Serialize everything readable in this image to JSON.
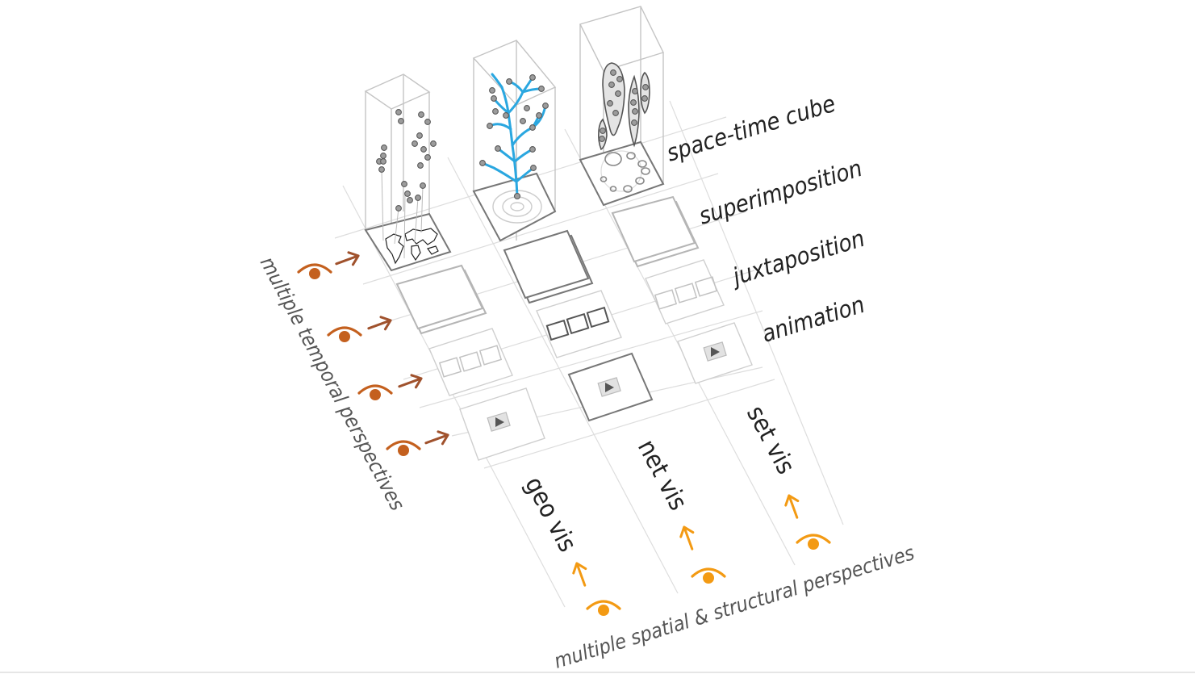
{
  "rows": {
    "space_time_cube": "space-time cube",
    "superimposition": "superimposition",
    "juxtaposition": "juxtaposition",
    "animation": "animation"
  },
  "columns": {
    "geo": "geo vis",
    "net": "net vis",
    "set": "set vis"
  },
  "axes": {
    "temporal": "multiple temporal perspectives",
    "spatial": "multiple spatial & structural perspectives"
  },
  "colors": {
    "temporal_eye": "#c4601e",
    "temporal_arrow": "#a0522d",
    "spatial_eye": "#f39a13",
    "network_branch": "#2aa7e0"
  },
  "icons": [
    "eye-icon",
    "arrow-icon",
    "world-map-icon",
    "play-icon"
  ]
}
